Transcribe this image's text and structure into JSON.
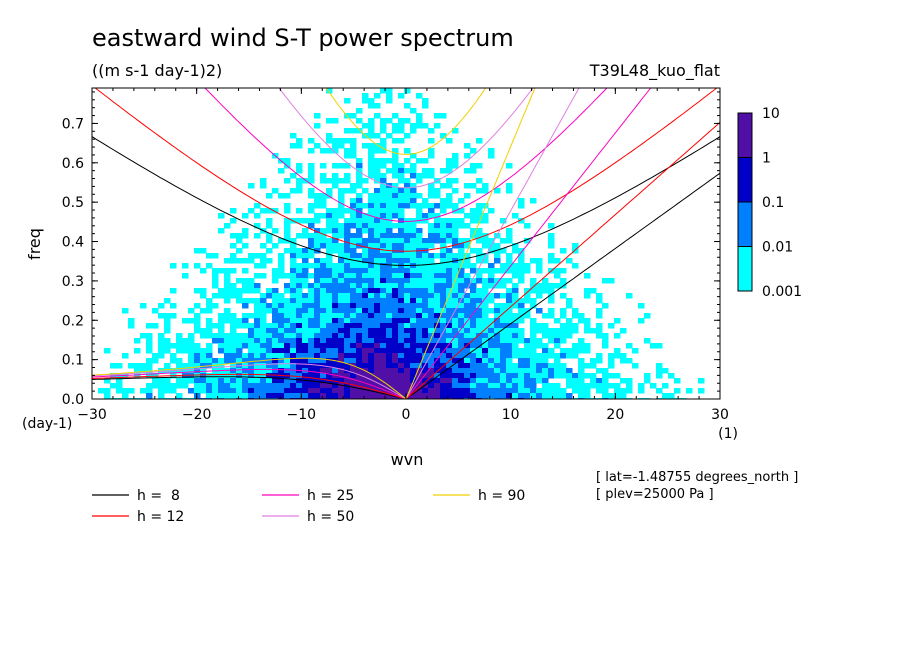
{
  "chart_data": {
    "type": "heatmap",
    "title": "eastward wind S-T power spectrum",
    "subtitle": "((m s-1 day-1)2)",
    "run_label": "T39L48_kuo_flat",
    "xlabel": "wvn",
    "ylabel": "freq",
    "x_unit": "(1)",
    "y_unit": "(day-1)",
    "xlim": [
      -30,
      30
    ],
    "ylim": [
      0,
      0.79
    ],
    "x_ticks": [
      -30,
      -20,
      -10,
      0,
      10,
      20,
      30
    ],
    "x_tick_labels": [
      "−30",
      "−20",
      "−10",
      "0",
      "10",
      "20",
      "30"
    ],
    "y_ticks": [
      0,
      0.1,
      0.2,
      0.3,
      0.4,
      0.5,
      0.6,
      0.7
    ],
    "y_tick_labels": [
      "0.0",
      "0.1",
      "0.2",
      "0.3",
      "0.4",
      "0.5",
      "0.6",
      "0.7"
    ],
    "colorbar": {
      "levels": [
        0.001,
        0.01,
        0.1,
        1,
        10
      ],
      "labels": [
        "0.001",
        "0.01",
        "0.1",
        "1",
        "10"
      ],
      "colors": [
        "#00ffff",
        "#0080ff",
        "#0000c8",
        "#5010a8"
      ]
    },
    "dispersion_curves": [
      {
        "name": "h =  8",
        "h": 8,
        "color": "#000000"
      },
      {
        "name": "h = 12",
        "h": 12,
        "color": "#ff0000"
      },
      {
        "name": "h = 25",
        "h": 25,
        "color": "#ff00c0"
      },
      {
        "name": "h = 50",
        "h": 50,
        "color": "#e080e0"
      },
      {
        "name": "h = 90",
        "h": 90,
        "color": "#f0d000"
      }
    ],
    "annotations": [
      "[ lat=-1.48755 degrees_north ]",
      "[ plev=25000 Pa ]"
    ]
  }
}
